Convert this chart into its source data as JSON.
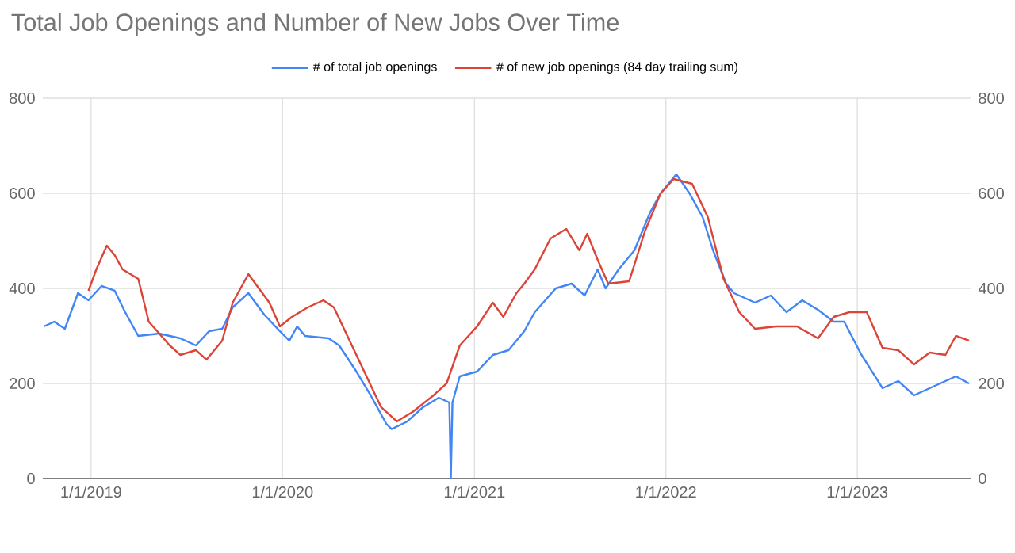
{
  "chart_data": {
    "type": "line",
    "title": "Total Job Openings and Number of New Jobs Over Time",
    "xlim": [
      "2018-10-01",
      "2023-08-05"
    ],
    "xticks": [
      {
        "value": "2019-01-01",
        "label": "1/1/2019"
      },
      {
        "value": "2020-01-01",
        "label": "1/1/2020"
      },
      {
        "value": "2021-01-01",
        "label": "1/1/2021"
      },
      {
        "value": "2022-01-01",
        "label": "1/1/2022"
      },
      {
        "value": "2023-01-01",
        "label": "1/1/2023"
      }
    ],
    "ylim": [
      0,
      800
    ],
    "yticks": [
      0,
      200,
      400,
      600,
      800
    ],
    "y2lim": [
      0,
      800
    ],
    "y2ticks": [
      0,
      200,
      400,
      600,
      800
    ],
    "grid": true,
    "legend": "top",
    "series": [
      {
        "name": "# of total job openings",
        "color": "#4285f4",
        "x": [
          "2018-10-03",
          "2018-10-23",
          "2018-11-12",
          "2018-12-07",
          "2018-12-27",
          "2019-01-21",
          "2019-02-15",
          "2019-03-07",
          "2019-04-01",
          "2019-05-11",
          "2019-05-31",
          "2019-06-20",
          "2019-07-20",
          "2019-08-14",
          "2019-09-08",
          "2019-09-28",
          "2019-10-28",
          "2019-11-27",
          "2019-12-27",
          "2020-01-14",
          "2020-01-29",
          "2020-02-13",
          "2020-03-29",
          "2020-04-18",
          "2020-05-18",
          "2020-06-17",
          "2020-07-17",
          "2020-07-27",
          "2020-08-26",
          "2020-09-25",
          "2020-10-25",
          "2020-11-14",
          "2020-11-17",
          "2020-11-20",
          "2020-12-04",
          "2021-01-06",
          "2021-02-05",
          "2021-03-07",
          "2021-04-06",
          "2021-04-26",
          "2021-06-05",
          "2021-07-05",
          "2021-07-30",
          "2021-08-24",
          "2021-09-08",
          "2021-10-03",
          "2021-11-02",
          "2021-12-02",
          "2021-12-22",
          "2022-01-21",
          "2022-02-15",
          "2022-03-12",
          "2022-04-01",
          "2022-04-26",
          "2022-05-11",
          "2022-06-20",
          "2022-07-20",
          "2022-08-19",
          "2022-09-18",
          "2022-10-18",
          "2022-11-17",
          "2022-12-07",
          "2023-01-09",
          "2023-02-18",
          "2023-03-20",
          "2023-04-19",
          "2023-05-19",
          "2023-06-18",
          "2023-07-08",
          "2023-08-02"
        ],
        "values": [
          320,
          330,
          315,
          390,
          375,
          405,
          395,
          350,
          300,
          305,
          300,
          295,
          280,
          310,
          315,
          360,
          390,
          345,
          310,
          290,
          320,
          300,
          295,
          280,
          230,
          175,
          115,
          104,
          120,
          150,
          170,
          160,
          0,
          160,
          215,
          225,
          260,
          270,
          310,
          350,
          400,
          410,
          385,
          440,
          400,
          440,
          480,
          560,
          600,
          640,
          600,
          550,
          480,
          410,
          390,
          370,
          385,
          350,
          375,
          355,
          330,
          330,
          260,
          190,
          205,
          175,
          190,
          205,
          215,
          200
        ]
      },
      {
        "name": "# of new job openings (84 day trailing sum)",
        "color": "#db4437",
        "x": [
          "2018-12-27",
          "2019-01-11",
          "2019-01-31",
          "2019-02-15",
          "2019-03-02",
          "2019-04-01",
          "2019-04-21",
          "2019-05-31",
          "2019-06-20",
          "2019-07-20",
          "2019-08-09",
          "2019-09-08",
          "2019-09-28",
          "2019-10-13",
          "2019-10-28",
          "2019-11-17",
          "2019-12-07",
          "2019-12-27",
          "2020-01-19",
          "2020-02-18",
          "2020-03-19",
          "2020-04-08",
          "2020-05-08",
          "2020-06-07",
          "2020-07-07",
          "2020-08-06",
          "2020-09-05",
          "2020-10-15",
          "2020-11-09",
          "2020-12-04",
          "2021-01-06",
          "2021-02-05",
          "2021-02-25",
          "2021-03-22",
          "2021-04-06",
          "2021-04-26",
          "2021-05-26",
          "2021-06-25",
          "2021-07-20",
          "2021-08-04",
          "2021-08-24",
          "2021-09-13",
          "2021-10-23",
          "2021-11-22",
          "2021-12-22",
          "2022-01-16",
          "2022-02-20",
          "2022-03-22",
          "2022-04-21",
          "2022-05-21",
          "2022-06-20",
          "2022-07-30",
          "2022-09-08",
          "2022-10-18",
          "2022-11-17",
          "2022-12-17",
          "2023-01-19",
          "2023-02-18",
          "2023-03-20",
          "2023-04-19",
          "2023-05-19",
          "2023-06-18",
          "2023-07-08",
          "2023-08-02"
        ],
        "values": [
          395,
          440,
          490,
          470,
          440,
          420,
          330,
          280,
          260,
          270,
          250,
          290,
          370,
          400,
          430,
          400,
          370,
          320,
          340,
          360,
          375,
          360,
          290,
          220,
          150,
          120,
          140,
          175,
          200,
          280,
          320,
          370,
          340,
          390,
          410,
          440,
          505,
          525,
          480,
          515,
          460,
          410,
          415,
          520,
          600,
          630,
          620,
          550,
          420,
          350,
          315,
          320,
          320,
          295,
          340,
          350,
          350,
          275,
          270,
          240,
          265,
          260,
          300,
          290
        ]
      }
    ]
  }
}
